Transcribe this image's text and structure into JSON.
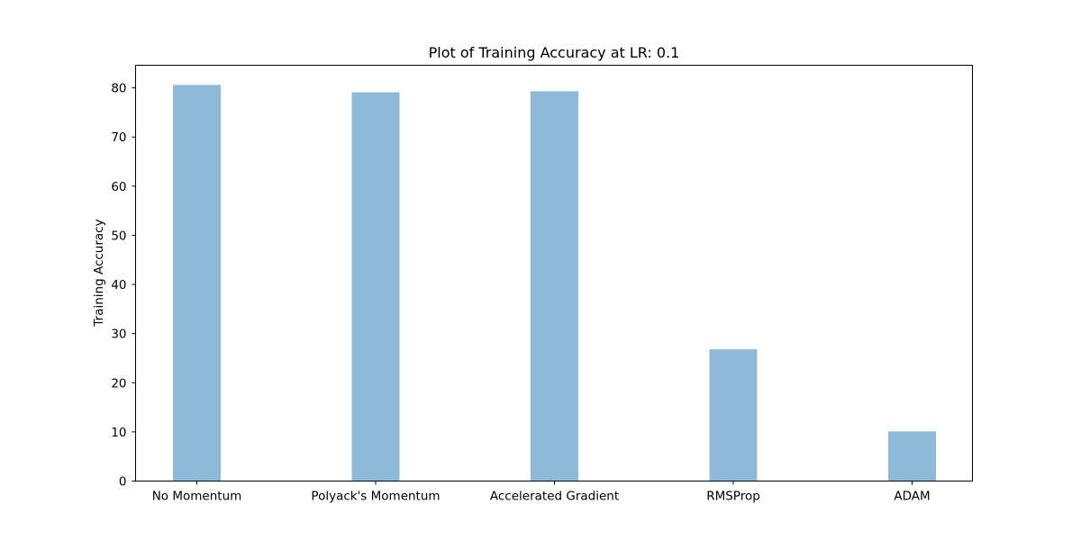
{
  "chart_data": {
    "type": "bar",
    "title": "Plot of Training Accuracy at LR: 0.1",
    "xlabel": "",
    "ylabel": "Training Accuracy",
    "categories": [
      "No Momentum",
      "Polyack's Momentum",
      "Accelerated Gradient",
      "RMSProp",
      "ADAM"
    ],
    "values": [
      80.6,
      79.1,
      79.3,
      26.8,
      10.1
    ],
    "ylim": [
      0,
      84.6
    ],
    "yticks": [
      0,
      10,
      20,
      30,
      40,
      50,
      60,
      70,
      80
    ],
    "grid": false,
    "bar_color": "#8fb9d9"
  }
}
